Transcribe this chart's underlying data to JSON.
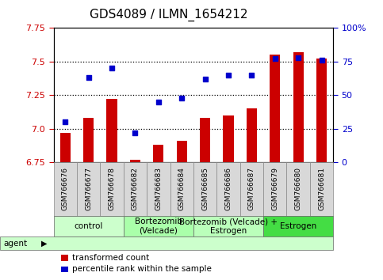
{
  "title": "GDS4089 / ILMN_1654212",
  "categories": [
    "GSM766676",
    "GSM766677",
    "GSM766678",
    "GSM766682",
    "GSM766683",
    "GSM766684",
    "GSM766685",
    "GSM766686",
    "GSM766687",
    "GSM766679",
    "GSM766680",
    "GSM766681"
  ],
  "bar_values": [
    6.97,
    7.08,
    7.22,
    6.77,
    6.88,
    6.91,
    7.08,
    7.1,
    7.15,
    7.55,
    7.57,
    7.52
  ],
  "dot_values": [
    30,
    63,
    70,
    22,
    45,
    48,
    62,
    65,
    65,
    77,
    78,
    76
  ],
  "bar_color": "#cc0000",
  "dot_color": "#0000cc",
  "ylim_left": [
    6.75,
    7.75
  ],
  "ylim_right": [
    0,
    100
  ],
  "yticks_left": [
    6.75,
    7.0,
    7.25,
    7.5,
    7.75
  ],
  "yticks_right": [
    0,
    25,
    50,
    75,
    100
  ],
  "ytick_labels_right": [
    "0",
    "25",
    "50",
    "75",
    "100%"
  ],
  "hlines": [
    7.0,
    7.25,
    7.5
  ],
  "groups": [
    {
      "label": "control",
      "start": 0,
      "end": 3,
      "color": "#ccffcc"
    },
    {
      "label": "Bortezomib\n(Velcade)",
      "start": 3,
      "end": 6,
      "color": "#aaffaa"
    },
    {
      "label": "Bortezomib (Velcade) +\nEstrogen",
      "start": 6,
      "end": 9,
      "color": "#bbffbb"
    },
    {
      "label": "Estrogen",
      "start": 9,
      "end": 12,
      "color": "#44dd44"
    }
  ],
  "agent_label": "agent",
  "legend_bar_label": "transformed count",
  "legend_dot_label": "percentile rank within the sample",
  "background_color": "#ffffff",
  "plot_bg_color": "#ffffff",
  "xtick_bg_color": "#d8d8d8",
  "title_fontsize": 11,
  "tick_fontsize": 8,
  "label_fontsize": 6.5,
  "group_fontsize": 7.5
}
